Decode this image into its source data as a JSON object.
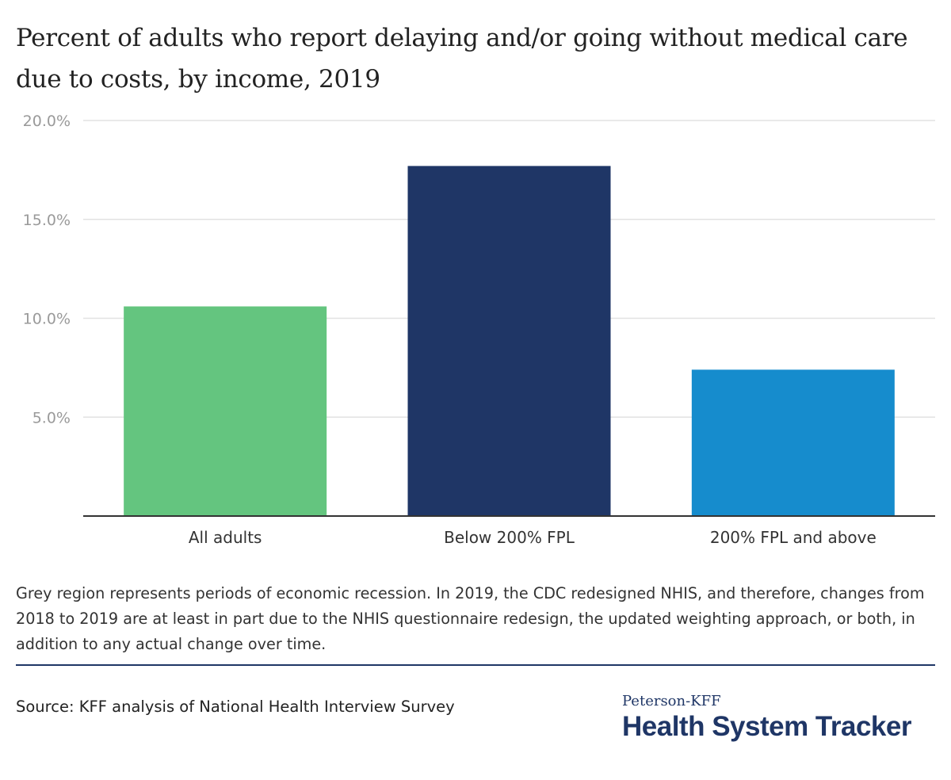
{
  "chart_data": {
    "type": "bar",
    "title": "Percent of adults who report delaying and/or going without medical care due to costs, by income, 2019",
    "categories": [
      "All adults",
      "Below 200% FPL",
      "200% FPL and above"
    ],
    "values": [
      10.6,
      17.7,
      7.4
    ],
    "colors": [
      "#64c57f",
      "#1f3666",
      "#168ccd"
    ],
    "ylim": [
      0,
      20
    ],
    "yticks": [
      5,
      10,
      15,
      20
    ],
    "ytick_labels": [
      "5.0%",
      "10.0%",
      "15.0%",
      "20.0%"
    ],
    "xlabel": "",
    "ylabel": "",
    "grid": true
  },
  "note": "Grey region represents periods of economic recession. In 2019, the CDC redesigned NHIS, and therefore, changes from 2018 to 2019 are at least in part due to the NHIS questionnaire redesign, the updated weighting approach, or both, in addition to any actual change over time.",
  "source": "Source: KFF analysis of National Health Interview Survey",
  "logo": {
    "top": "Peterson-KFF",
    "main": "Health System Tracker"
  }
}
